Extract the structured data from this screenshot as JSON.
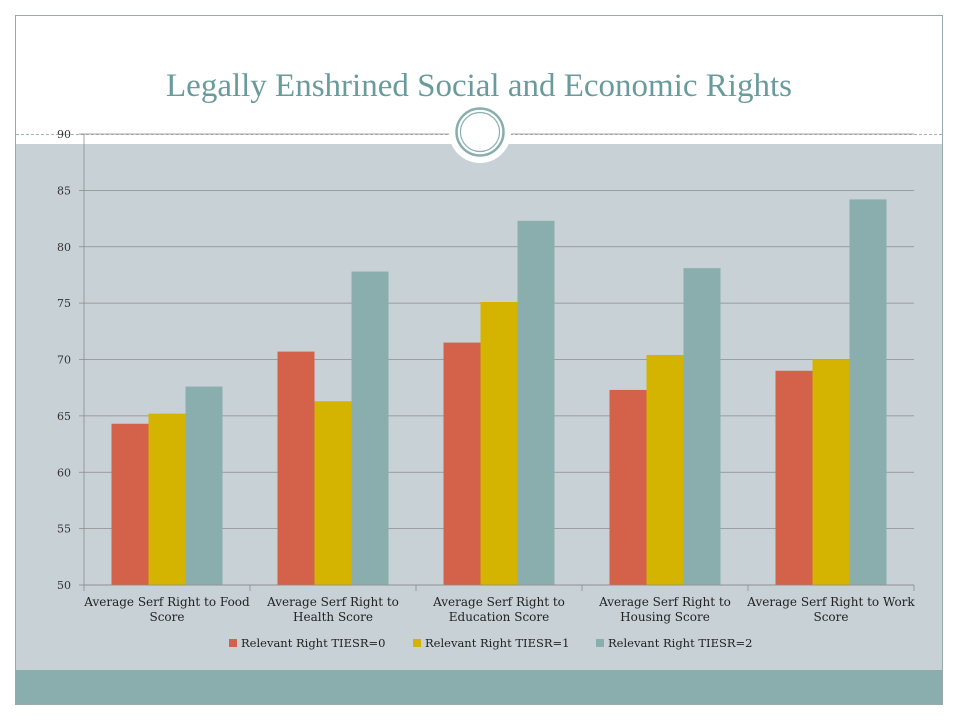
{
  "slide": {
    "title": "Legally Enshrined Social and Economic Rights"
  },
  "colors": {
    "title": "#6a9b9c",
    "body_background": "#c8d1d6",
    "footer": "#8aaeae",
    "series": [
      "#d4624a",
      "#d4b400",
      "#8aaeae"
    ]
  },
  "chart_data": {
    "type": "bar",
    "title": "",
    "xlabel": "",
    "ylabel": "",
    "ylim": [
      50,
      90
    ],
    "yticks": [
      50,
      55,
      60,
      65,
      70,
      75,
      80,
      85,
      90
    ],
    "grid": true,
    "legend_position": "bottom",
    "categories": [
      [
        "Average Serf Right to Food",
        "Score"
      ],
      [
        "Average Serf Right to",
        "Health Score"
      ],
      [
        "Average Serf Right to",
        "Education Score"
      ],
      [
        "Average Serf Right to",
        "Housing Score"
      ],
      [
        "Average Serf Right to Work",
        "Score"
      ]
    ],
    "series": [
      {
        "name": "Relevant Right TIESR=0",
        "values": [
          64.3,
          70.7,
          71.5,
          67.3,
          69.0
        ]
      },
      {
        "name": "Relevant Right TIESR=1",
        "values": [
          65.2,
          66.3,
          75.1,
          70.4,
          70.0
        ]
      },
      {
        "name": "Relevant Right TIESR=2",
        "values": [
          67.6,
          77.8,
          82.3,
          78.1,
          84.2
        ]
      }
    ]
  }
}
